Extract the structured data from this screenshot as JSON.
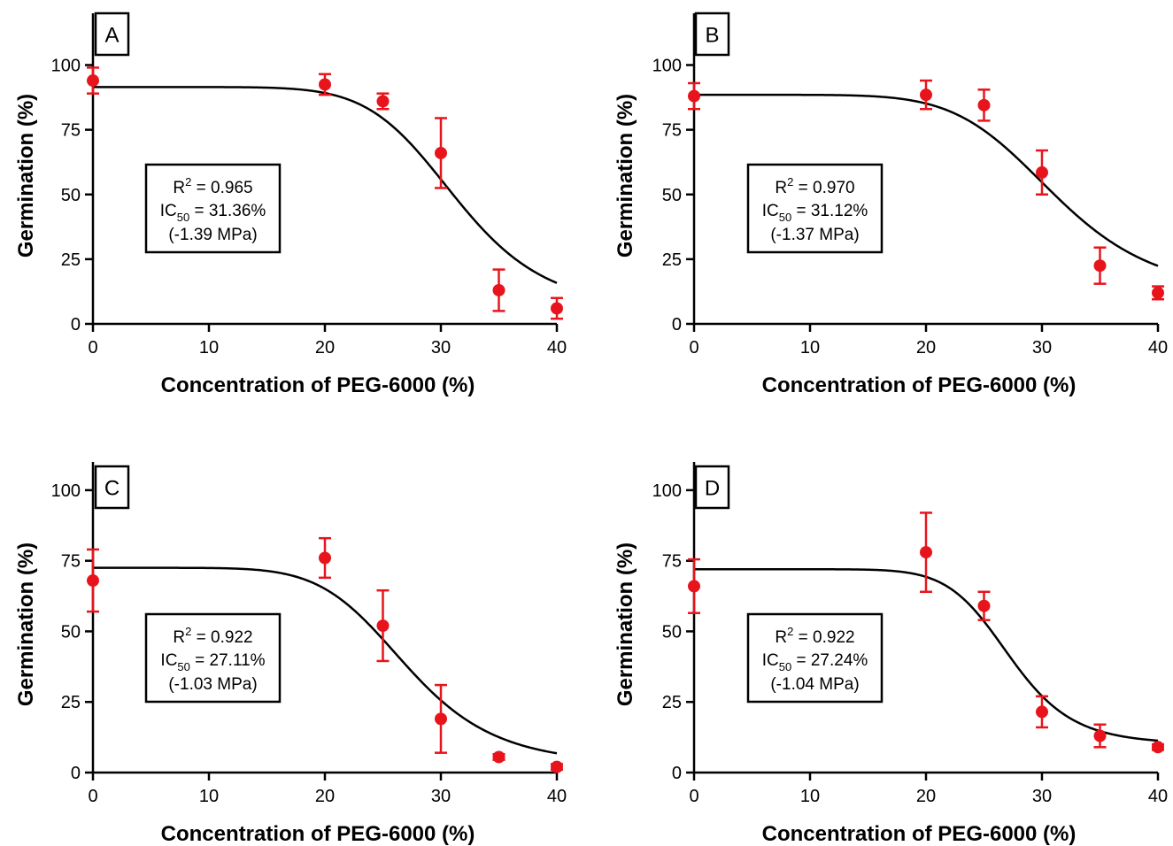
{
  "chart_data": [
    {
      "type": "scatter",
      "panel": "A",
      "xlabel": "Concentration of PEG-6000 (%)",
      "ylabel": "Germination (%)",
      "xlim": [
        0,
        40
      ],
      "ylim": [
        0,
        120
      ],
      "xticks": [
        0,
        10,
        20,
        30,
        40
      ],
      "yticks": [
        0,
        25,
        50,
        75,
        100
      ],
      "grid": false,
      "x": [
        0,
        20,
        25,
        30,
        35,
        40
      ],
      "y": [
        94,
        92.5,
        86,
        66,
        13,
        6
      ],
      "error": [
        5,
        4,
        3,
        13.5,
        8,
        4
      ],
      "fit": {
        "top": 91.5,
        "bottom": 5,
        "ic50": 31.36,
        "hill": 8
      },
      "stats": {
        "r2_prefix": "R",
        "r2_sup": "2",
        "r2_value": " = 0.965",
        "ic_prefix": "IC",
        "ic_sub": "50",
        "ic_value": " = 31.36%",
        "pressure": "(-1.39 MPa)"
      }
    },
    {
      "type": "scatter",
      "panel": "B",
      "xlabel": "Concentration of PEG-6000 (%)",
      "ylabel": "Germination (%)",
      "xlim": [
        0,
        40
      ],
      "ylim": [
        0,
        120
      ],
      "xticks": [
        0,
        10,
        20,
        30,
        40
      ],
      "yticks": [
        0,
        25,
        50,
        75,
        100
      ],
      "grid": false,
      "x": [
        0,
        20,
        25,
        30,
        35,
        40
      ],
      "y": [
        88,
        88.5,
        84.5,
        58.5,
        22.5,
        12
      ],
      "error": [
        5,
        5.5,
        6,
        8.5,
        7,
        2.5
      ],
      "fit": {
        "top": 88.5,
        "bottom": 11,
        "ic50": 31.12,
        "hill": 7
      },
      "stats": {
        "r2_prefix": "R",
        "r2_sup": "2",
        "r2_value": " = 0.970",
        "ic_prefix": "IC",
        "ic_sub": "50",
        "ic_value": " = 31.12%",
        "pressure": "(-1.37 MPa)"
      }
    },
    {
      "type": "scatter",
      "panel": "C",
      "xlabel": "Concentration of PEG-6000 (%)",
      "ylabel": "Germination (%)",
      "xlim": [
        0,
        40
      ],
      "ylim": [
        0,
        110
      ],
      "xticks": [
        0,
        10,
        20,
        30,
        40
      ],
      "yticks": [
        0,
        25,
        50,
        75,
        100
      ],
      "grid": false,
      "x": [
        0,
        20,
        25,
        30,
        35,
        40
      ],
      "y": [
        68,
        76,
        52,
        19,
        5.5,
        2
      ],
      "error": [
        11,
        7,
        12.5,
        12,
        1,
        1
      ],
      "fit": {
        "top": 72.5,
        "bottom": 2.5,
        "ic50": 27.11,
        "hill": 7
      },
      "stats": {
        "r2_prefix": "R",
        "r2_sup": "2",
        "r2_value": " = 0.922",
        "ic_prefix": "IC",
        "ic_sub": "50",
        "ic_value": " = 27.11%",
        "pressure": "(-1.03 MPa)"
      }
    },
    {
      "type": "scatter",
      "panel": "D",
      "xlabel": "Concentration of PEG-6000 (%)",
      "ylabel": "Germination (%)",
      "xlim": [
        0,
        40
      ],
      "ylim": [
        0,
        110
      ],
      "xticks": [
        0,
        10,
        20,
        30,
        40
      ],
      "yticks": [
        0,
        25,
        50,
        75,
        100
      ],
      "grid": false,
      "x": [
        0,
        20,
        25,
        30,
        35,
        40
      ],
      "y": [
        66,
        78,
        59,
        21.5,
        13,
        9
      ],
      "error": [
        9.5,
        14,
        5,
        5.5,
        4,
        1
      ],
      "fit": {
        "top": 72,
        "bottom": 10,
        "ic50": 27.24,
        "hill": 10
      },
      "stats": {
        "r2_prefix": "R",
        "r2_sup": "2",
        "r2_value": " = 0.922",
        "ic_prefix": "IC",
        "ic_sub": "50",
        "ic_value": " = 27.24%",
        "pressure": "(-1.04 MPa)"
      }
    }
  ],
  "colors": {
    "points": "#e8141c",
    "error_bars": "#e8141c",
    "fit_curve": "#000000",
    "axes": "#000000",
    "background": "#ffffff"
  }
}
